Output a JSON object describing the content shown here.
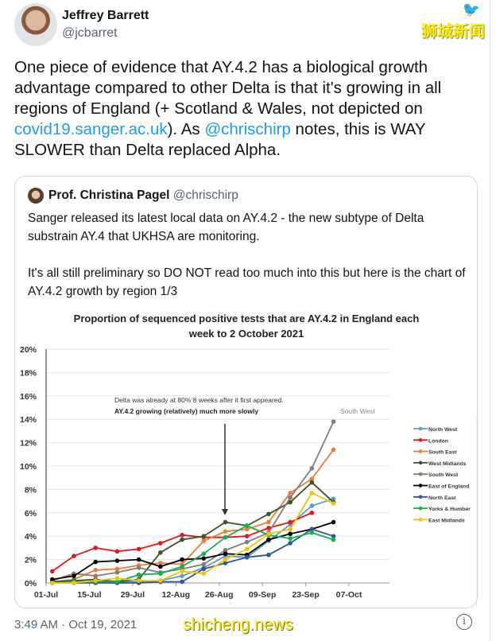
{
  "tweet": {
    "author_name": "Jeffrey Barrett",
    "author_handle": "@jcbarret",
    "text_parts": [
      "One piece of evidence that AY.4.2 has a biological growth advantage compared to other Delta is that it's growing in all regions of England (+ Scotland & Wales, not depicted on ",
      "covid19.sanger.ac.uk",
      "). As ",
      "@chrischirp",
      " notes, this is WAY SLOWER than Delta replaced Alpha."
    ],
    "timestamp": "3:49 AM · Oct 19, 2021",
    "info_icon": "i"
  },
  "watermarks": {
    "top": "狮城新闻",
    "bottom": "shicheng.news"
  },
  "quote": {
    "author_name": "Prof. Christina Pagel",
    "author_handle": "@chrischirp",
    "text": "Sanger released its latest local data on AY.4.2 - the new subtype of Delta substrain AY.4 that UKHSA are monitoring.\n\nIt's all still preliminary so DO NOT read too much into this but here is the chart of AY.4.2 growth by region 1/3"
  },
  "colors": {
    "link": "#1d9bf0",
    "text": "#0f1419",
    "muted": "#536471"
  },
  "chart_data": {
    "type": "line",
    "title": "Proportion of sequenced positive tests that are AY.4.2 in England each week to 2 October 2021",
    "title_lines": [
      "Proportion of sequenced positive tests that are AY.4.2 in England each",
      "week to 2 October 2021"
    ],
    "annotation_lines": [
      "Delta was already at 80% 8 weeks after it first appeared.",
      "AY.4.2 growing (relatively) much more slowly"
    ],
    "series_label": "South West",
    "x_ticks": [
      "01-Jul",
      "15-Jul",
      "29-Jul",
      "12-Aug",
      "26-Aug",
      "09-Sep",
      "23-Sep",
      "07-Oct"
    ],
    "y_ticks": [
      "0%",
      "2%",
      "4%",
      "6%",
      "8%",
      "10%",
      "12%",
      "14%",
      "16%",
      "18%",
      "20%"
    ],
    "ylim": [
      0,
      20
    ],
    "xlim": [
      "2021-07-01",
      "2021-10-07"
    ],
    "grid": "horizontal",
    "legend_placement": "right",
    "x": [
      "2021-07-03",
      "2021-07-10",
      "2021-07-17",
      "2021-07-24",
      "2021-07-31",
      "2021-08-07",
      "2021-08-14",
      "2021-08-21",
      "2021-08-28",
      "2021-09-04",
      "2021-09-11",
      "2021-09-18",
      "2021-09-25",
      "2021-10-02"
    ],
    "series": [
      {
        "name": "North West",
        "color": "#5b9bd5",
        "values": [
          0,
          0.1,
          0.1,
          0.1,
          0.1,
          0.2,
          0.6,
          1.3,
          2.3,
          2.2,
          3.6,
          5.0,
          6.6,
          7.2
        ]
      },
      {
        "name": "London",
        "color": "#e8141c",
        "values": [
          1.0,
          2.3,
          3.0,
          2.7,
          2.9,
          3.4,
          4.1,
          3.9,
          3.9,
          4.0,
          4.7,
          5.2,
          6.0,
          null
        ]
      },
      {
        "name": "South East",
        "color": "#ed7d31",
        "values": [
          0.1,
          0.3,
          1.1,
          1.2,
          1.5,
          1.7,
          1.6,
          3.6,
          4.4,
          4.6,
          5.2,
          7.7,
          8.9,
          11.4
        ]
      },
      {
        "name": "West Midlands",
        "color": "#375623",
        "values": [
          0.1,
          0.2,
          0.3,
          0.1,
          0.3,
          2.6,
          3.7,
          4.0,
          5.2,
          4.9,
          5.9,
          6.9,
          8.6,
          6.9
        ]
      },
      {
        "name": "South West",
        "color": "#7f7f7f",
        "values": [
          0.2,
          0.8,
          0.6,
          0.9,
          1.3,
          0.9,
          1.2,
          1.6,
          2.8,
          3.5,
          4.3,
          7.3,
          9.8,
          13.8
        ]
      },
      {
        "name": "East of England",
        "color": "#000000",
        "values": [
          0.3,
          0.6,
          1.8,
          1.9,
          2.0,
          1.4,
          2.0,
          2.1,
          2.5,
          2.4,
          3.7,
          4.2,
          4.6,
          5.2
        ]
      },
      {
        "name": "North East",
        "color": "#2f5597",
        "values": [
          0,
          0,
          0,
          0,
          0,
          0.1,
          0.1,
          1.2,
          1.7,
          2.2,
          2.4,
          3.4,
          4.6,
          4.0
        ]
      },
      {
        "name": "Yorks & Humber",
        "color": "#13b050",
        "values": [
          0,
          0.1,
          0.1,
          0.1,
          0.7,
          0.8,
          1.4,
          2.5,
          3.9,
          4.9,
          4.1,
          3.8,
          4.3,
          3.7
        ]
      },
      {
        "name": "East Midlands",
        "color": "#f5c400",
        "values": [
          0,
          0,
          0.2,
          0.4,
          0.2,
          0.2,
          1.0,
          0.8,
          2.0,
          2.9,
          4.2,
          4.6,
          7.7,
          6.8
        ]
      }
    ]
  }
}
